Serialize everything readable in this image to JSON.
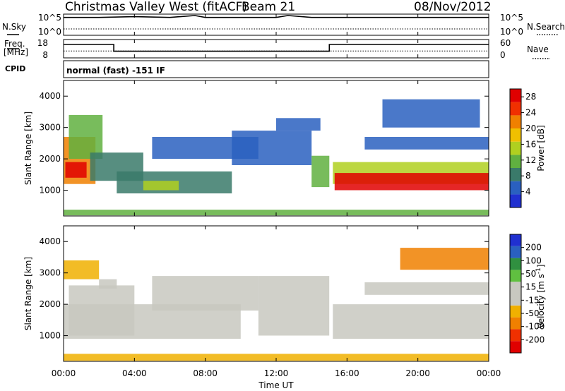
{
  "header": {
    "title": "Christmas Valley West (fitACF)",
    "beam": "Beam 21",
    "date": "08/Nov/2012",
    "mode": "normal (fast) -151 IF"
  },
  "status": {
    "nsky_label": "N.Sky",
    "nsky_ticks": [
      "10^5",
      "10^0"
    ],
    "nsearch_label": "N.Search",
    "freq_label_line1": "Freq.",
    "freq_label_line2": "[MHz]",
    "freq_ticks": [
      "18",
      "8"
    ],
    "nave_label": "Nave",
    "nave_ticks": [
      "60",
      "0"
    ],
    "cpid_label": "CPID"
  },
  "colors": {
    "power_scale": [
      "#2030d0",
      "#2a60c0",
      "#3a7a6a",
      "#60b040",
      "#b0d020",
      "#f0c000",
      "#f08000",
      "#f03000",
      "#e00000"
    ],
    "velocity_scale": [
      "#e00000",
      "#f03000",
      "#f08000",
      "#f0b000",
      "#c8c8c0",
      "#c8c8c0",
      "#60c040",
      "#309040",
      "#2a60c0",
      "#2030d0"
    ]
  },
  "chart_data": [
    {
      "type": "line",
      "name": "N.Sky",
      "x": [
        "00:00",
        "02:00",
        "04:00",
        "06:00",
        "07:25",
        "08:00",
        "10:00",
        "12:00",
        "12:40",
        "14:00",
        "15:00",
        "16:00",
        "18:00",
        "20:00",
        "22:00",
        "24:00"
      ],
      "y": [
        30000,
        30000,
        50000,
        30000,
        100000,
        30000,
        30000,
        30000,
        100000,
        30000,
        30000,
        30000,
        30000,
        30000,
        30000,
        30000
      ],
      "ylim": [
        1,
        100000
      ],
      "yscale": "log"
    },
    {
      "type": "line",
      "name": "Freq.",
      "x": [
        "00:00",
        "02:50",
        "02:50",
        "15:00",
        "15:00",
        "24:00"
      ],
      "y": [
        15.5,
        15.5,
        11.5,
        11.5,
        15.5,
        15.5
      ],
      "ylim": [
        8,
        18
      ],
      "ylabel": "[MHz]"
    },
    {
      "type": "line",
      "name": "Nave",
      "x": [
        "00:00",
        "24:00"
      ],
      "y": [
        22,
        22
      ],
      "ylim": [
        0,
        60
      ]
    },
    {
      "type": "heatmap",
      "variable": "Power",
      "xlabel": "Time UT",
      "ylabel": "Slant Range [km]",
      "xticks": [
        "00:00",
        "04:00",
        "08:00",
        "12:00",
        "16:00",
        "20:00",
        "00:00"
      ],
      "xlim": [
        0,
        24
      ],
      "yticks": [
        1000,
        2000,
        3000,
        4000
      ],
      "ylim": [
        180,
        4500
      ],
      "colorbar_label": "Power [dB]",
      "colorbar_ticks": [
        4,
        8,
        12,
        16,
        20,
        24,
        28
      ],
      "clim": [
        0,
        30
      ],
      "regions": [
        {
          "t0": 0.0,
          "t1": 1.8,
          "r0": 1200,
          "r1": 2700,
          "v": 22
        },
        {
          "t0": 0.1,
          "t1": 1.3,
          "r0": 1400,
          "r1": 1900,
          "v": 28
        },
        {
          "t0": 0.3,
          "t1": 2.2,
          "r0": 2000,
          "r1": 3400,
          "v": 12
        },
        {
          "t0": 1.5,
          "t1": 4.5,
          "r0": 1300,
          "r1": 2200,
          "v": 8
        },
        {
          "t0": 3.0,
          "t1": 9.5,
          "r0": 900,
          "r1": 1600,
          "v": 9
        },
        {
          "t0": 4.5,
          "t1": 6.5,
          "r0": 1000,
          "r1": 1300,
          "v": 16
        },
        {
          "t0": 5.0,
          "t1": 11.0,
          "r0": 2000,
          "r1": 2700,
          "v": 5
        },
        {
          "t0": 9.5,
          "t1": 14.0,
          "r0": 1800,
          "r1": 2900,
          "v": 5
        },
        {
          "t0": 12.0,
          "t1": 14.5,
          "r0": 2900,
          "r1": 3300,
          "v": 5
        },
        {
          "t0": 14.0,
          "t1": 15.0,
          "r0": 1100,
          "r1": 2100,
          "v": 12
        },
        {
          "t0": 0.0,
          "t1": 24.0,
          "r0": 200,
          "r1": 380,
          "v": 10
        },
        {
          "t0": 15.2,
          "t1": 24.0,
          "r0": 1200,
          "r1": 1900,
          "v": 16
        },
        {
          "t0": 15.3,
          "t1": 24.0,
          "r0": 1000,
          "r1": 1550,
          "v": 28
        },
        {
          "t0": 17.0,
          "t1": 24.0,
          "r0": 2300,
          "r1": 2700,
          "v": 5
        },
        {
          "t0": 18.0,
          "t1": 23.5,
          "r0": 3000,
          "r1": 3900,
          "v": 6
        }
      ]
    },
    {
      "type": "heatmap",
      "variable": "Velocity",
      "xlabel": "Time UT",
      "ylabel": "Slant Range [km]",
      "xticks": [
        "00:00",
        "04:00",
        "08:00",
        "12:00",
        "16:00",
        "20:00",
        "00:00"
      ],
      "xlim": [
        0,
        24
      ],
      "yticks": [
        1000,
        2000,
        3000,
        4000
      ],
      "ylim": [
        180,
        4500
      ],
      "colorbar_label": "Velocity [m s^-1]",
      "colorbar_ticks": [
        200,
        100,
        50,
        15,
        -15,
        -50,
        -100,
        -200
      ],
      "clim": [
        -250,
        250
      ],
      "regions": [
        {
          "t0": 0.0,
          "t1": 10.0,
          "r0": 900,
          "r1": 2000,
          "v": 0
        },
        {
          "t0": 0.3,
          "t1": 4.0,
          "r0": 1000,
          "r1": 2600,
          "v": 30
        },
        {
          "t0": 0.0,
          "t1": 2.0,
          "r0": 2800,
          "r1": 3400,
          "v": -60
        },
        {
          "t0": 2.0,
          "t1": 3.0,
          "r0": 2500,
          "r1": 2800,
          "v": 0
        },
        {
          "t0": 5.0,
          "t1": 11.0,
          "r0": 1800,
          "r1": 2900,
          "v": 30
        },
        {
          "t0": 11.0,
          "t1": 15.0,
          "r0": 1000,
          "r1": 2900,
          "v": 25
        },
        {
          "t0": 0.0,
          "t1": 24.0,
          "r0": 200,
          "r1": 420,
          "v": -60
        },
        {
          "t0": 15.2,
          "t1": 24.0,
          "r0": 900,
          "r1": 2000,
          "v": 0
        },
        {
          "t0": 17.0,
          "t1": 24.0,
          "r0": 2300,
          "r1": 2700,
          "v": 20
        },
        {
          "t0": 19.0,
          "t1": 24.0,
          "r0": 3100,
          "r1": 3800,
          "v": -150
        }
      ]
    }
  ]
}
